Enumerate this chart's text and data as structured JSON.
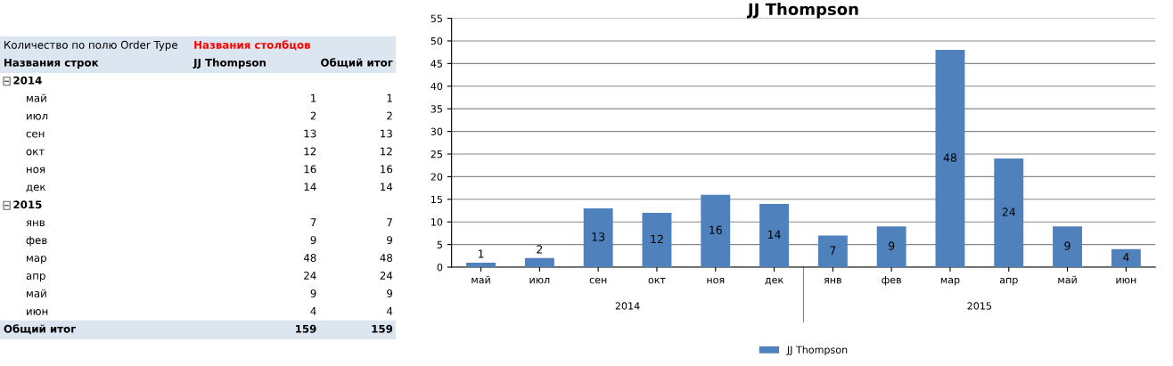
{
  "chart_data": [
    {
      "type": "other",
      "categories": [
        "май",
        "июл",
        "сен",
        "окт",
        "ноя",
        "дек",
        "янв",
        "фев",
        "мар",
        "апр",
        "май",
        "июн"
      ],
      "series": [
        {
          "name": "JJ Thompson",
          "values": [
            1,
            2,
            13,
            12,
            16,
            14,
            7,
            9,
            48,
            24,
            9,
            4
          ]
        },
        {
          "name": "Общий итог",
          "values": [
            1,
            2,
            13,
            12,
            16,
            14,
            7,
            9,
            48,
            24,
            9,
            4
          ]
        }
      ],
      "totals": [
        "159",
        "159"
      ],
      "data_labels": true,
      "annotations": [
        "Количество по полю Order Type",
        "Названия столбцов",
        "Названия строк",
        "2014",
        "2015",
        "Общий итог"
      ]
    },
    {
      "type": "bar",
      "title": "JJ Thompson",
      "categories": [
        "май",
        "июл",
        "сен",
        "окт",
        "ноя",
        "дек",
        "янв",
        "фев",
        "мар",
        "апр",
        "май",
        "июн"
      ],
      "series": [
        {
          "name": "JJ Thompson",
          "color": "#4f81bd",
          "values": [
            1,
            2,
            13,
            12,
            16,
            14,
            7,
            9,
            48,
            24,
            9,
            4
          ]
        }
      ],
      "ylim": [
        0,
        55
      ],
      "yticks": [
        0,
        5,
        10,
        15,
        20,
        25,
        30,
        35,
        40,
        45,
        50,
        55
      ],
      "grid": "y",
      "legend": "bottom",
      "data_labels": true,
      "annotations": [
        "2014",
        "2015"
      ]
    }
  ]
}
